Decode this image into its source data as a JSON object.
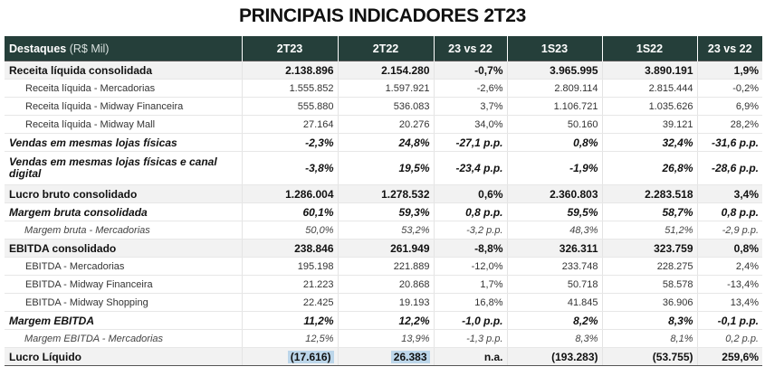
{
  "title": "PRINCIPAIS INDICADORES 2T23",
  "header": {
    "destaques": "Destaques",
    "unit": "(R$ Mil)",
    "cols": [
      "2T23",
      "2T22",
      "23 vs 22",
      "1S23",
      "1S22",
      "23 vs 22"
    ]
  },
  "rows": [
    {
      "label": "Receita líquida consolidada",
      "style": "main",
      "values": [
        "2.138.896",
        "2.154.280",
        "-0,7%",
        "3.965.995",
        "3.890.191",
        "1,9%"
      ]
    },
    {
      "label": "Receita líquida - Mercadorias",
      "style": "sub",
      "values": [
        "1.555.852",
        "1.597.921",
        "-2,6%",
        "2.809.114",
        "2.815.444",
        "-0,2%"
      ]
    },
    {
      "label": "Receita líquida - Midway Financeira",
      "style": "sub",
      "values": [
        "555.880",
        "536.083",
        "3,7%",
        "1.106.721",
        "1.035.626",
        "6,9%"
      ]
    },
    {
      "label": "Receita líquida - Midway Mall",
      "style": "sub",
      "values": [
        "27.164",
        "20.276",
        "34,0%",
        "50.160",
        "39.121",
        "28,2%"
      ]
    },
    {
      "label": "Vendas em mesmas lojas físicas",
      "style": "boldital",
      "values": [
        "-2,3%",
        "24,8%",
        "-27,1 p.p.",
        "0,8%",
        "32,4%",
        "-31,6 p.p."
      ]
    },
    {
      "label": "Vendas em mesmas lojas físicas e canal digital",
      "style": "boldital twoline",
      "values": [
        "-3,8%",
        "19,5%",
        "-23,4 p.p.",
        "-1,9%",
        "26,8%",
        "-28,6 p.p."
      ]
    },
    {
      "label": "Lucro bruto consolidado",
      "style": "main",
      "values": [
        "1.286.004",
        "1.278.532",
        "0,6%",
        "2.360.803",
        "2.283.518",
        "3,4%"
      ]
    },
    {
      "label": "Margem bruta consolidada",
      "style": "boldital",
      "values": [
        "60,1%",
        "59,3%",
        "0,8 p.p.",
        "59,5%",
        "58,7%",
        "0,8 p.p."
      ]
    },
    {
      "label": "Margem bruta - Mercadorias",
      "style": "subital",
      "values": [
        "50,0%",
        "53,2%",
        "-3,2 p.p.",
        "48,3%",
        "51,2%",
        "-2,9 p.p."
      ]
    },
    {
      "label": "EBITDA consolidado",
      "style": "main",
      "values": [
        "238.846",
        "261.949",
        "-8,8%",
        "326.311",
        "323.759",
        "0,8%"
      ]
    },
    {
      "label": "EBITDA - Mercadorias",
      "style": "sub",
      "values": [
        "195.198",
        "221.889",
        "-12,0%",
        "233.748",
        "228.275",
        "2,4%"
      ]
    },
    {
      "label": "EBITDA - Midway Financeira",
      "style": "sub",
      "values": [
        "21.223",
        "20.868",
        "1,7%",
        "50.718",
        "58.578",
        "-13,4%"
      ]
    },
    {
      "label": "EBITDA - Midway Shopping",
      "style": "sub",
      "values": [
        "22.425",
        "19.193",
        "16,8%",
        "41.845",
        "36.906",
        "13,4%"
      ]
    },
    {
      "label": "Margem EBITDA",
      "style": "boldital",
      "values": [
        "11,2%",
        "12,2%",
        "-1,0 p.p.",
        "8,2%",
        "8,3%",
        "-0,1 p.p."
      ]
    },
    {
      "label": "Margem EBITDA - Mercadorias",
      "style": "subital",
      "values": [
        "12,5%",
        "13,9%",
        "-1,3 p.p.",
        "8,3%",
        "8,1%",
        "0,2 p.p."
      ]
    },
    {
      "label": "Lucro Líquido",
      "style": "main last",
      "highlight": [
        0,
        1
      ],
      "values": [
        "(17.616)",
        "26.383",
        "n.a.",
        "(193.283)",
        "(53.755)",
        "259,6%"
      ]
    }
  ],
  "colors": {
    "header_bg": "#253f3a",
    "highlight": "#bcd6ea",
    "main_row_bg": "#f2f2f2"
  }
}
